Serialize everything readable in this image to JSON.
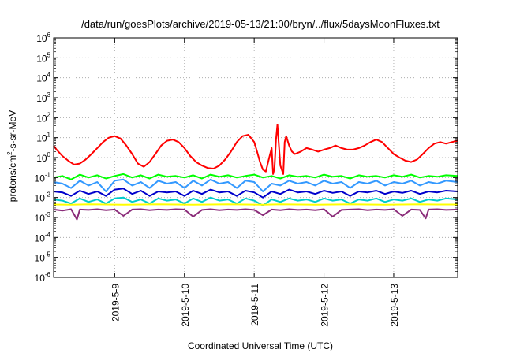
{
  "chart_data": {
    "type": "line",
    "title": "/data/run/goesPlots/archive/2019-05-13/21:00/bryn/../flux/5daysMoonFluxes.txt",
    "xlabel": "Coordinated Universal Time (UTC)",
    "ylabel": {
      "base": "protons/cm",
      "sup": "2",
      "rest": "-s-sr-MeV"
    },
    "y_scale": "log",
    "ylim_exp": [
      -6,
      6
    ],
    "y_ticks": [
      {
        "exp": -6,
        "label": "-6"
      },
      {
        "exp": -5,
        "label": "-5"
      },
      {
        "exp": -4,
        "label": "-4"
      },
      {
        "exp": -3,
        "label": "-3"
      },
      {
        "exp": -2,
        "label": "-2"
      },
      {
        "exp": -1,
        "label": "-1"
      },
      {
        "exp": 0,
        "label": "0"
      },
      {
        "exp": 1,
        "label": "1"
      },
      {
        "exp": 2,
        "label": "2"
      },
      {
        "exp": 3,
        "label": "3"
      },
      {
        "exp": 4,
        "label": "4"
      },
      {
        "exp": 5,
        "label": "5"
      },
      {
        "exp": 6,
        "label": "6"
      }
    ],
    "y_tick_base": "10",
    "xlim": [
      "2019-05-08 03:00",
      "2019-05-13 22:00"
    ],
    "x_ticks": [
      {
        "x": "2019-05-09 00:00",
        "label": "2019-5-9"
      },
      {
        "x": "2019-05-10 00:00",
        "label": "2019-5-10"
      },
      {
        "x": "2019-05-11 00:00",
        "label": "2019-5-11"
      },
      {
        "x": "2019-05-12 00:00",
        "label": "2019-5-12"
      },
      {
        "x": "2019-05-13 00:00",
        "label": "2019-5-13"
      }
    ],
    "grid": true,
    "legend": "none",
    "series": [
      {
        "color": "#ff0000",
        "x": [
          "2019-05-08 03:00",
          "2019-05-08 04:00",
          "2019-05-08 06:00",
          "2019-05-08 08:00",
          "2019-05-08 10:00",
          "2019-05-08 12:00",
          "2019-05-08 14:00",
          "2019-05-08 16:00",
          "2019-05-08 18:00",
          "2019-05-08 20:00",
          "2019-05-08 22:00",
          "2019-05-09 00:00",
          "2019-05-09 02:00",
          "2019-05-09 04:00",
          "2019-05-09 06:00",
          "2019-05-09 08:00",
          "2019-05-09 10:00",
          "2019-05-09 12:00",
          "2019-05-09 14:00",
          "2019-05-09 16:00",
          "2019-05-09 18:00",
          "2019-05-09 20:00",
          "2019-05-09 22:00",
          "2019-05-10 00:00",
          "2019-05-10 02:00",
          "2019-05-10 04:00",
          "2019-05-10 06:00",
          "2019-05-10 08:00",
          "2019-05-10 10:00",
          "2019-05-10 12:00",
          "2019-05-10 14:00",
          "2019-05-10 16:00",
          "2019-05-10 18:00",
          "2019-05-10 20:00",
          "2019-05-10 22:00",
          "2019-05-11 00:00",
          "2019-05-11 01:00",
          "2019-05-11 02:00",
          "2019-05-11 03:00",
          "2019-05-11 04:00",
          "2019-05-11 05:00",
          "2019-05-11 06:00",
          "2019-05-11 06:30",
          "2019-05-11 07:00",
          "2019-05-11 07:30",
          "2019-05-11 08:00",
          "2019-05-11 09:00",
          "2019-05-11 10:00",
          "2019-05-11 10:30",
          "2019-05-11 11:00",
          "2019-05-11 12:00",
          "2019-05-11 13:00",
          "2019-05-11 14:00",
          "2019-05-11 16:00",
          "2019-05-11 18:00",
          "2019-05-11 20:00",
          "2019-05-11 22:00",
          "2019-05-12 00:00",
          "2019-05-12 02:00",
          "2019-05-12 04:00",
          "2019-05-12 06:00",
          "2019-05-12 08:00",
          "2019-05-12 10:00",
          "2019-05-12 12:00",
          "2019-05-12 14:00",
          "2019-05-12 16:00",
          "2019-05-12 18:00",
          "2019-05-12 20:00",
          "2019-05-12 22:00",
          "2019-05-13 00:00",
          "2019-05-13 02:00",
          "2019-05-13 04:00",
          "2019-05-13 06:00",
          "2019-05-13 08:00",
          "2019-05-13 10:00",
          "2019-05-13 12:00",
          "2019-05-13 14:00",
          "2019-05-13 16:00",
          "2019-05-13 18:00",
          "2019-05-13 20:00",
          "2019-05-13 22:00"
        ],
        "values": [
          4,
          2.5,
          1.2,
          0.7,
          0.45,
          0.5,
          0.8,
          1.5,
          3,
          6,
          10,
          12,
          9,
          4,
          1.5,
          0.5,
          0.35,
          0.6,
          1.5,
          4,
          7,
          8,
          6,
          3,
          1.2,
          0.6,
          0.4,
          0.3,
          0.28,
          0.4,
          0.8,
          2,
          6,
          12,
          14,
          6,
          2,
          0.6,
          0.25,
          0.2,
          0.8,
          3,
          0.15,
          0.3,
          8,
          45,
          0.4,
          0.15,
          6,
          12,
          4,
          2,
          1.5,
          2,
          3,
          2.5,
          2,
          2.5,
          3,
          4,
          3,
          2.5,
          2.5,
          3,
          4,
          6,
          8,
          6,
          3,
          1.5,
          1,
          0.7,
          0.6,
          0.8,
          1.5,
          3,
          5,
          6,
          5,
          6,
          7
        ]
      },
      {
        "color": "#00ff00",
        "x": [
          "2019-05-08 03:00",
          "2019-05-08 06:00",
          "2019-05-08 09:00",
          "2019-05-08 12:00",
          "2019-05-08 15:00",
          "2019-05-08 18:00",
          "2019-05-08 21:00",
          "2019-05-09 00:00",
          "2019-05-09 03:00",
          "2019-05-09 06:00",
          "2019-05-09 09:00",
          "2019-05-09 12:00",
          "2019-05-09 15:00",
          "2019-05-09 18:00",
          "2019-05-09 21:00",
          "2019-05-10 00:00",
          "2019-05-10 03:00",
          "2019-05-10 06:00",
          "2019-05-10 09:00",
          "2019-05-10 12:00",
          "2019-05-10 15:00",
          "2019-05-10 18:00",
          "2019-05-10 21:00",
          "2019-05-11 00:00",
          "2019-05-11 03:00",
          "2019-05-11 06:00",
          "2019-05-11 09:00",
          "2019-05-11 12:00",
          "2019-05-11 15:00",
          "2019-05-11 18:00",
          "2019-05-11 21:00",
          "2019-05-12 00:00",
          "2019-05-12 03:00",
          "2019-05-12 06:00",
          "2019-05-12 09:00",
          "2019-05-12 12:00",
          "2019-05-12 15:00",
          "2019-05-12 18:00",
          "2019-05-12 21:00",
          "2019-05-13 00:00",
          "2019-05-13 03:00",
          "2019-05-13 06:00",
          "2019-05-13 09:00",
          "2019-05-13 12:00",
          "2019-05-13 15:00",
          "2019-05-13 18:00",
          "2019-05-13 22:00"
        ],
        "values": [
          0.1,
          0.12,
          0.08,
          0.14,
          0.1,
          0.13,
          0.09,
          0.12,
          0.15,
          0.1,
          0.13,
          0.09,
          0.14,
          0.11,
          0.12,
          0.1,
          0.13,
          0.09,
          0.14,
          0.11,
          0.13,
          0.1,
          0.12,
          0.14,
          0.1,
          0.12,
          0.09,
          0.13,
          0.11,
          0.12,
          0.1,
          0.14,
          0.11,
          0.12,
          0.09,
          0.13,
          0.11,
          0.12,
          0.1,
          0.13,
          0.11,
          0.14,
          0.1,
          0.12,
          0.11,
          0.13,
          0.12
        ]
      },
      {
        "color": "#3399ff",
        "x": [
          "2019-05-08 03:00",
          "2019-05-08 06:00",
          "2019-05-08 09:00",
          "2019-05-08 12:00",
          "2019-05-08 15:00",
          "2019-05-08 18:00",
          "2019-05-08 21:00",
          "2019-05-09 00:00",
          "2019-05-09 03:00",
          "2019-05-09 06:00",
          "2019-05-09 09:00",
          "2019-05-09 12:00",
          "2019-05-09 15:00",
          "2019-05-09 18:00",
          "2019-05-09 21:00",
          "2019-05-10 00:00",
          "2019-05-10 03:00",
          "2019-05-10 06:00",
          "2019-05-10 09:00",
          "2019-05-10 12:00",
          "2019-05-10 15:00",
          "2019-05-10 18:00",
          "2019-05-10 21:00",
          "2019-05-11 00:00",
          "2019-05-11 03:00",
          "2019-05-11 06:00",
          "2019-05-11 09:00",
          "2019-05-11 12:00",
          "2019-05-11 15:00",
          "2019-05-11 18:00",
          "2019-05-11 21:00",
          "2019-05-12 00:00",
          "2019-05-12 03:00",
          "2019-05-12 06:00",
          "2019-05-12 09:00",
          "2019-05-12 12:00",
          "2019-05-12 15:00",
          "2019-05-12 18:00",
          "2019-05-12 21:00",
          "2019-05-13 00:00",
          "2019-05-13 03:00",
          "2019-05-13 06:00",
          "2019-05-13 09:00",
          "2019-05-13 12:00",
          "2019-05-13 15:00",
          "2019-05-13 18:00",
          "2019-05-13 22:00"
        ],
        "values": [
          0.06,
          0.05,
          0.03,
          0.07,
          0.04,
          0.06,
          0.02,
          0.07,
          0.08,
          0.04,
          0.06,
          0.03,
          0.07,
          0.05,
          0.06,
          0.03,
          0.07,
          0.04,
          0.08,
          0.05,
          0.06,
          0.03,
          0.07,
          0.06,
          0.02,
          0.05,
          0.04,
          0.07,
          0.05,
          0.06,
          0.04,
          0.07,
          0.05,
          0.06,
          0.03,
          0.06,
          0.05,
          0.07,
          0.04,
          0.06,
          0.05,
          0.07,
          0.04,
          0.06,
          0.05,
          0.07,
          0.06
        ]
      },
      {
        "color": "#0000cc",
        "x": [
          "2019-05-08 03:00",
          "2019-05-08 06:00",
          "2019-05-08 09:00",
          "2019-05-08 12:00",
          "2019-05-08 15:00",
          "2019-05-08 18:00",
          "2019-05-08 21:00",
          "2019-05-09 00:00",
          "2019-05-09 03:00",
          "2019-05-09 06:00",
          "2019-05-09 09:00",
          "2019-05-09 12:00",
          "2019-05-09 15:00",
          "2019-05-09 18:00",
          "2019-05-09 21:00",
          "2019-05-10 00:00",
          "2019-05-10 03:00",
          "2019-05-10 06:00",
          "2019-05-10 09:00",
          "2019-05-10 12:00",
          "2019-05-10 15:00",
          "2019-05-10 18:00",
          "2019-05-10 21:00",
          "2019-05-11 00:00",
          "2019-05-11 03:00",
          "2019-05-11 06:00",
          "2019-05-11 09:00",
          "2019-05-11 12:00",
          "2019-05-11 15:00",
          "2019-05-11 18:00",
          "2019-05-11 21:00",
          "2019-05-12 00:00",
          "2019-05-12 03:00",
          "2019-05-12 06:00",
          "2019-05-12 09:00",
          "2019-05-12 12:00",
          "2019-05-12 15:00",
          "2019-05-12 18:00",
          "2019-05-12 21:00",
          "2019-05-13 00:00",
          "2019-05-13 03:00",
          "2019-05-13 06:00",
          "2019-05-13 09:00",
          "2019-05-13 12:00",
          "2019-05-13 15:00",
          "2019-05-13 18:00",
          "2019-05-13 22:00"
        ],
        "values": [
          0.02,
          0.018,
          0.012,
          0.022,
          0.015,
          0.02,
          0.012,
          0.025,
          0.028,
          0.015,
          0.022,
          0.012,
          0.02,
          0.018,
          0.02,
          0.012,
          0.022,
          0.015,
          0.025,
          0.018,
          0.02,
          0.012,
          0.022,
          0.018,
          0.01,
          0.02,
          0.015,
          0.025,
          0.018,
          0.02,
          0.015,
          0.022,
          0.017,
          0.02,
          0.012,
          0.02,
          0.018,
          0.022,
          0.015,
          0.02,
          0.017,
          0.022,
          0.015,
          0.02,
          0.018,
          0.022,
          0.02
        ]
      },
      {
        "color": "#00cccc",
        "x": [
          "2019-05-08 03:00",
          "2019-05-08 06:00",
          "2019-05-08 09:00",
          "2019-05-08 12:00",
          "2019-05-08 15:00",
          "2019-05-08 18:00",
          "2019-05-08 21:00",
          "2019-05-09 00:00",
          "2019-05-09 03:00",
          "2019-05-09 06:00",
          "2019-05-09 09:00",
          "2019-05-09 12:00",
          "2019-05-09 15:00",
          "2019-05-09 18:00",
          "2019-05-09 21:00",
          "2019-05-10 00:00",
          "2019-05-10 03:00",
          "2019-05-10 06:00",
          "2019-05-10 09:00",
          "2019-05-10 12:00",
          "2019-05-10 15:00",
          "2019-05-10 18:00",
          "2019-05-10 21:00",
          "2019-05-11 00:00",
          "2019-05-11 03:00",
          "2019-05-11 06:00",
          "2019-05-11 09:00",
          "2019-05-11 12:00",
          "2019-05-11 15:00",
          "2019-05-11 18:00",
          "2019-05-11 21:00",
          "2019-05-12 00:00",
          "2019-05-12 03:00",
          "2019-05-12 06:00",
          "2019-05-12 09:00",
          "2019-05-12 12:00",
          "2019-05-12 15:00",
          "2019-05-12 18:00",
          "2019-05-12 21:00",
          "2019-05-13 00:00",
          "2019-05-13 03:00",
          "2019-05-13 06:00",
          "2019-05-13 09:00",
          "2019-05-13 12:00",
          "2019-05-13 15:00",
          "2019-05-13 18:00",
          "2019-05-13 22:00"
        ],
        "values": [
          0.008,
          0.007,
          0.005,
          0.009,
          0.006,
          0.008,
          0.005,
          0.009,
          0.01,
          0.006,
          0.008,
          0.005,
          0.009,
          0.007,
          0.008,
          0.005,
          0.009,
          0.006,
          0.01,
          0.007,
          0.008,
          0.005,
          0.009,
          0.007,
          0.004,
          0.008,
          0.006,
          0.009,
          0.007,
          0.008,
          0.006,
          0.009,
          0.007,
          0.008,
          0.005,
          0.008,
          0.007,
          0.009,
          0.006,
          0.008,
          0.007,
          0.009,
          0.006,
          0.008,
          0.007,
          0.009,
          0.008
        ]
      },
      {
        "color": "#ffff00",
        "x": [
          "2019-05-08 03:00",
          "2019-05-08 09:00",
          "2019-05-08 15:00",
          "2019-05-08 21:00",
          "2019-05-09 03:00",
          "2019-05-09 09:00",
          "2019-05-09 15:00",
          "2019-05-09 21:00",
          "2019-05-10 03:00",
          "2019-05-10 09:00",
          "2019-05-10 15:00",
          "2019-05-10 21:00",
          "2019-05-11 03:00",
          "2019-05-11 09:00",
          "2019-05-11 15:00",
          "2019-05-11 21:00",
          "2019-05-12 03:00",
          "2019-05-12 09:00",
          "2019-05-12 15:00",
          "2019-05-12 21:00",
          "2019-05-13 03:00",
          "2019-05-13 09:00",
          "2019-05-13 15:00",
          "2019-05-13 22:00"
        ],
        "values": [
          0.0045,
          0.0044,
          0.0046,
          0.0045,
          0.0044,
          0.0045,
          0.0046,
          0.0045,
          0.0044,
          0.0045,
          0.0046,
          0.0045,
          0.0044,
          0.0046,
          0.0045,
          0.0044,
          0.0045,
          0.0046,
          0.0045,
          0.0044,
          0.0045,
          0.0046,
          0.0045,
          0.0045
        ]
      },
      {
        "color": "#8b2d7a",
        "x": [
          "2019-05-08 03:00",
          "2019-05-08 06:00",
          "2019-05-08 09:00",
          "2019-05-08 11:00",
          "2019-05-08 12:00",
          "2019-05-08 15:00",
          "2019-05-08 18:00",
          "2019-05-08 21:00",
          "2019-05-09 00:00",
          "2019-05-09 03:00",
          "2019-05-09 06:00",
          "2019-05-09 09:00",
          "2019-05-09 12:00",
          "2019-05-09 15:00",
          "2019-05-09 18:00",
          "2019-05-09 21:00",
          "2019-05-10 00:00",
          "2019-05-10 03:00",
          "2019-05-10 06:00",
          "2019-05-10 09:00",
          "2019-05-10 12:00",
          "2019-05-10 15:00",
          "2019-05-10 18:00",
          "2019-05-10 21:00",
          "2019-05-11 00:00",
          "2019-05-11 03:00",
          "2019-05-11 06:00",
          "2019-05-11 09:00",
          "2019-05-11 12:00",
          "2019-05-11 15:00",
          "2019-05-11 18:00",
          "2019-05-11 21:00",
          "2019-05-12 00:00",
          "2019-05-12 03:00",
          "2019-05-12 06:00",
          "2019-05-12 09:00",
          "2019-05-12 12:00",
          "2019-05-12 15:00",
          "2019-05-12 18:00",
          "2019-05-12 21:00",
          "2019-05-13 00:00",
          "2019-05-13 03:00",
          "2019-05-13 06:00",
          "2019-05-13 09:00",
          "2019-05-13 11:00",
          "2019-05-13 12:00",
          "2019-05-13 15:00",
          "2019-05-13 18:00",
          "2019-05-13 22:00"
        ],
        "values": [
          0.0025,
          0.0022,
          0.0026,
          0.0008,
          0.0025,
          0.0024,
          0.0026,
          0.0023,
          0.0025,
          0.0012,
          0.0025,
          0.0026,
          0.0023,
          0.0025,
          0.0024,
          0.0026,
          0.0025,
          0.0011,
          0.0024,
          0.0026,
          0.0023,
          0.0025,
          0.0024,
          0.0026,
          0.0024,
          0.0013,
          0.0025,
          0.0023,
          0.0026,
          0.0024,
          0.0025,
          0.0023,
          0.0026,
          0.0011,
          0.0024,
          0.0025,
          0.0026,
          0.0023,
          0.0025,
          0.0024,
          0.0026,
          0.0012,
          0.0025,
          0.0024,
          0.0009,
          0.0025,
          0.0026,
          0.0024,
          0.0025
        ]
      }
    ]
  }
}
